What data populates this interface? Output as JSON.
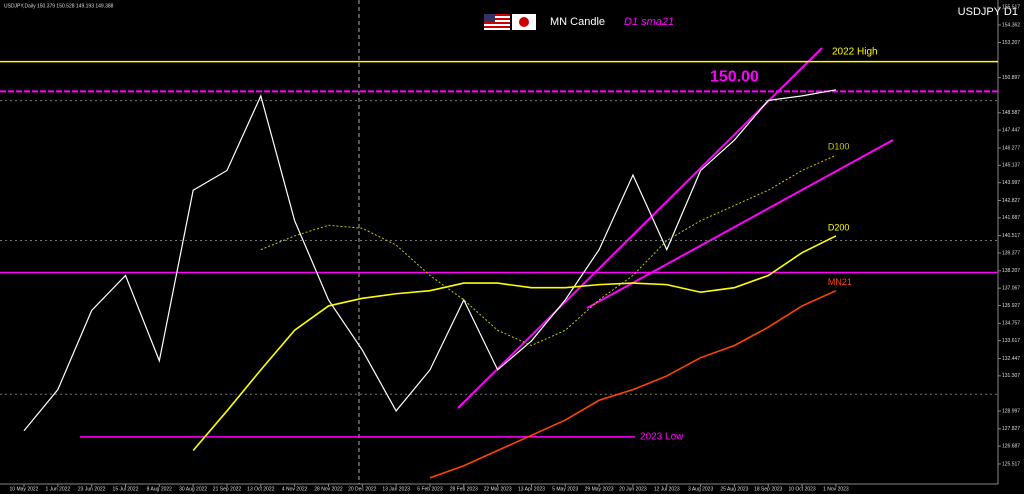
{
  "chart_data": {
    "type": "line",
    "title": "USDJPY,Daily  150.379 150.528 149.193 149.388",
    "annotations": [
      "MN Candle",
      "D1 sma21"
    ],
    "categories": [
      "10 May 2022",
      "1 Jun 2022",
      "23 Jun 2022",
      "15 Jul 2022",
      "8 Aug 2022",
      "30 Aug 2022",
      "21 Sep 2022",
      "13 Oct 2022",
      "4 Nov 2022",
      "28 Nov 2022",
      "20 Dec 2022",
      "13 Jan 2023",
      "6 Feb 2023",
      "28 Feb 2023",
      "22 Mar 2023",
      "13 Apr 2023",
      "5 May 2023",
      "29 May 2023",
      "20 Jun 2023",
      "12 Jul 2023",
      "3 Aug 2023",
      "25 Aug 2023",
      "18 Sep 2023",
      "10 Oct 2023",
      "1 Nov 2023"
    ],
    "series": [
      {
        "name": "USDJPY D1",
        "color": "#ffffff",
        "values": [
          127.7,
          130.4,
          135.6,
          137.9,
          132.3,
          143.5,
          144.8,
          149.7,
          141.5,
          136.3,
          133.0,
          129.0,
          131.7,
          136.3,
          131.7,
          133.6,
          136.3,
          139.6,
          144.5,
          139.6,
          144.8,
          146.8,
          149.4,
          149.7,
          150.1
        ]
      },
      {
        "name": "D100",
        "color": "#c8c800",
        "values": [
          null,
          null,
          null,
          null,
          null,
          null,
          null,
          139.6,
          140.5,
          141.2,
          141.0,
          139.9,
          137.9,
          136.3,
          134.3,
          133.3,
          134.3,
          136.3,
          137.9,
          140.2,
          141.5,
          142.5,
          143.5,
          144.8,
          145.8
        ]
      },
      {
        "name": "D200",
        "color": "#ffff00",
        "values": [
          null,
          null,
          null,
          null,
          null,
          126.4,
          129.0,
          131.7,
          134.3,
          135.9,
          136.4,
          136.7,
          136.9,
          137.4,
          137.4,
          137.1,
          137.1,
          137.3,
          137.4,
          137.3,
          136.8,
          137.1,
          137.9,
          139.4,
          140.5
        ]
      },
      {
        "name": "MN21",
        "color": "#ff4500",
        "values": [
          null,
          null,
          null,
          null,
          null,
          null,
          null,
          null,
          null,
          null,
          null,
          null,
          124.6,
          125.4,
          126.4,
          127.4,
          128.4,
          129.7,
          130.4,
          131.3,
          132.5,
          133.3,
          134.5,
          135.9,
          136.9
        ]
      }
    ],
    "levels": [
      {
        "value": 151.95,
        "label": "2022 High",
        "color": "#ffff00"
      },
      {
        "value": 150.0,
        "label": "150.00",
        "color": "#ff00ff"
      },
      {
        "value": 138.1,
        "color": "#ff00ff"
      },
      {
        "value": 127.3,
        "label": "2023 Low",
        "color": "#ff00ff"
      }
    ],
    "grid_levels": [
      149.388,
      140.2,
      130.1
    ],
    "ylim": [
      124.2,
      156.0
    ],
    "yticks": [
      155.517,
      154.362,
      153.207,
      150.897,
      148.587,
      147.447,
      146.277,
      145.137,
      143.997,
      142.827,
      141.687,
      140.517,
      139.377,
      138.207,
      137.067,
      135.927,
      134.757,
      133.617,
      132.447,
      131.307,
      128.997,
      127.827,
      126.687,
      125.517
    ]
  }
}
